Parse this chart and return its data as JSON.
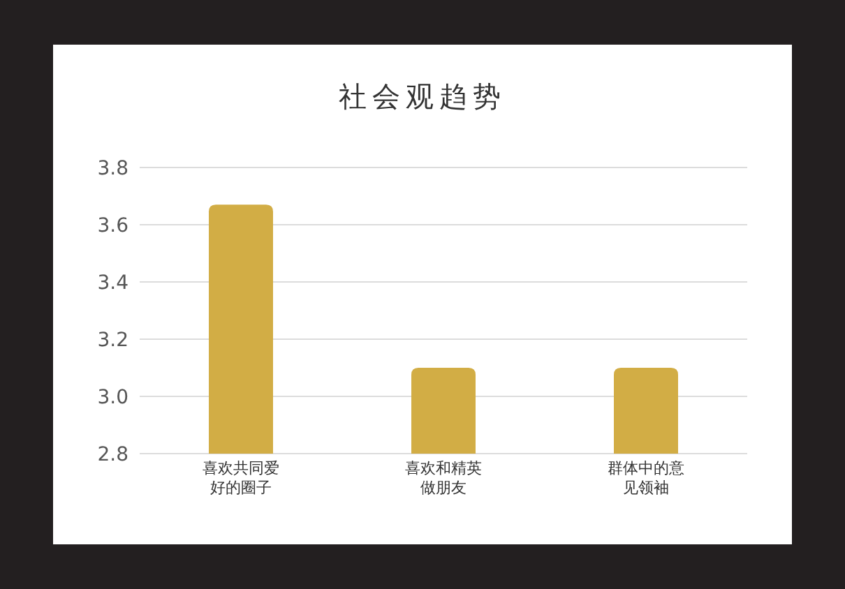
{
  "chart_data": {
    "type": "bar",
    "title": "社会观趋势",
    "categories": [
      "喜欢共同爱好的圈子",
      "喜欢和精英做朋友",
      "群体中的意见领袖"
    ],
    "values": [
      3.67,
      3.1,
      3.1
    ],
    "color": "#d2ad45",
    "ylim": [
      2.8,
      3.8
    ],
    "yticks": [
      2.8,
      {
        "value": 3,
        "label": "3.0"
      },
      3.2,
      3.4,
      3.6,
      3.8
    ],
    "grid": "y"
  }
}
